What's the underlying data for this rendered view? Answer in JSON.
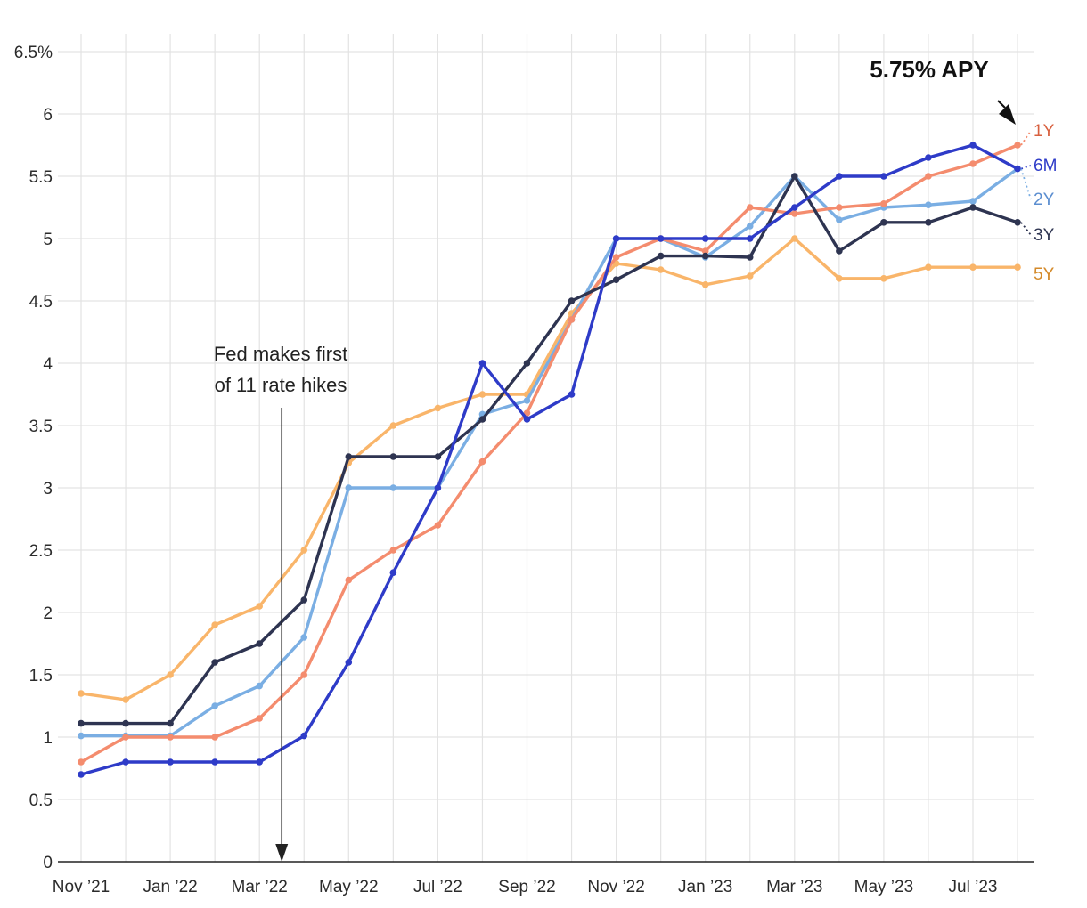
{
  "chart_data": {
    "type": "line",
    "x": [
      "Nov '21",
      "Dec '21",
      "Jan '22",
      "Feb '22",
      "Mar '22",
      "Apr '22",
      "May '22",
      "Jun '22",
      "Jul '22",
      "Aug '22",
      "Sep '22",
      "Oct '22",
      "Nov '22",
      "Dec '22",
      "Jan '23",
      "Feb '23",
      "Mar '23",
      "Apr '23",
      "May '23",
      "Jun '23",
      "Jul '23",
      "Aug '23"
    ],
    "x_tick_labels": [
      "Nov ’21",
      "Jan ’22",
      "Mar ’22",
      "May ’22",
      "Jul ’22",
      "Sep ’22",
      "Nov ’22",
      "Jan ’23",
      "Mar ’23",
      "May ’23",
      "Jul ’23"
    ],
    "y_tick_labels": [
      "0",
      "0.5",
      "1",
      "1.5",
      "2",
      "2.5",
      "3",
      "3.5",
      "4",
      "4.5",
      "5",
      "5.5",
      "6",
      "6.5%"
    ],
    "ylim": [
      0,
      6.5
    ],
    "grid": true,
    "series": [
      {
        "name": "5Y",
        "color": "#F9B56A",
        "values": [
          1.35,
          1.3,
          1.5,
          1.9,
          2.05,
          2.5,
          3.2,
          3.5,
          3.64,
          3.75,
          3.75,
          4.4,
          4.8,
          4.75,
          4.63,
          4.7,
          5.0,
          4.68,
          4.68,
          4.77,
          4.77,
          4.77
        ]
      },
      {
        "name": "2Y",
        "color": "#7AAEE3",
        "values": [
          1.01,
          1.01,
          1.01,
          1.25,
          1.41,
          1.8,
          3.0,
          3.0,
          3.0,
          3.59,
          3.7,
          4.35,
          5.0,
          5.0,
          4.85,
          5.1,
          5.5,
          5.15,
          5.25,
          5.27,
          5.3,
          5.56
        ]
      },
      {
        "name": "1Y",
        "color": "#F48C6E",
        "values": [
          0.8,
          1.0,
          1.0,
          1.0,
          1.15,
          1.5,
          2.26,
          2.5,
          2.7,
          3.21,
          3.6,
          4.35,
          4.85,
          5.0,
          4.9,
          5.25,
          5.2,
          5.25,
          5.28,
          5.5,
          5.6,
          5.75
        ]
      },
      {
        "name": "3Y",
        "color": "#2E3451",
        "values": [
          1.11,
          1.11,
          1.11,
          1.6,
          1.75,
          2.1,
          3.25,
          3.25,
          3.25,
          3.55,
          4.0,
          4.5,
          4.67,
          4.86,
          4.86,
          4.85,
          5.5,
          4.9,
          5.13,
          5.13,
          5.25,
          5.13
        ]
      },
      {
        "name": "6M",
        "color": "#2E3BC8",
        "values": [
          0.7,
          0.8,
          0.8,
          0.8,
          0.8,
          1.01,
          1.6,
          2.32,
          3.0,
          4.0,
          3.55,
          3.75,
          5.0,
          5.0,
          5.0,
          5.0,
          5.25,
          5.5,
          5.5,
          5.65,
          5.75,
          5.56
        ]
      }
    ],
    "end_labels": [
      {
        "series": "1Y",
        "text": "1Y",
        "color": "#D8603F"
      },
      {
        "series": "6M",
        "text": "6M",
        "color": "#2E3BC8"
      },
      {
        "series": "2Y",
        "text": "2Y",
        "color": "#5B8ED0"
      },
      {
        "series": "3Y",
        "text": "3Y",
        "color": "#2E3451"
      },
      {
        "series": "5Y",
        "text": "5Y",
        "color": "#D48A2A"
      }
    ],
    "annotations": {
      "fed_line1": "Fed makes first",
      "fed_line2": "of 11 rate hikes",
      "apy": "5.75% APY"
    }
  }
}
